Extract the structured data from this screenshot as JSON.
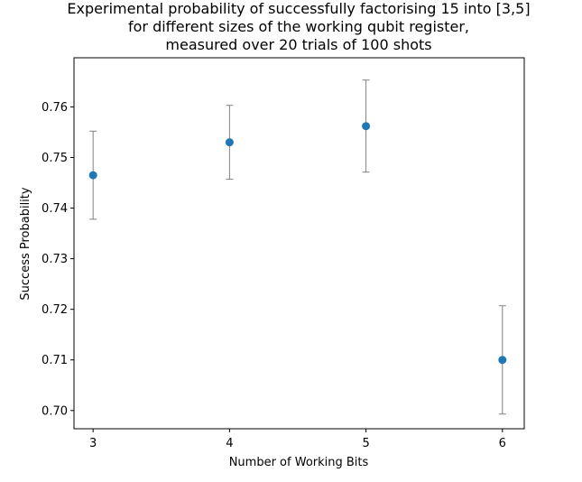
{
  "chart_data": {
    "type": "scatter",
    "title_lines": [
      "Experimental probability of successfully factorising 15 into [3,5]",
      "for different sizes of the working qubit register,",
      "measured over 20 trials of 100 shots"
    ],
    "xlabel": "Number of Working Bits",
    "ylabel": "Success Probability",
    "x": [
      3,
      4,
      5,
      6
    ],
    "y": [
      0.7465,
      0.753,
      0.7562,
      0.71
    ],
    "yerr": [
      0.0087,
      0.0073,
      0.0091,
      0.0107
    ],
    "x_ticks": [
      3,
      4,
      5,
      6
    ],
    "x_tick_labels": [
      "3",
      "4",
      "5",
      "6"
    ],
    "y_ticks": [
      0.7,
      0.71,
      0.72,
      0.73,
      0.74,
      0.75,
      0.76
    ],
    "y_tick_labels": [
      "0.70",
      "0.71",
      "0.72",
      "0.73",
      "0.74",
      "0.75",
      "0.76"
    ],
    "xlim": [
      2.86,
      6.16
    ],
    "ylim": [
      0.6964,
      0.7697
    ],
    "grid": false,
    "legend": "none",
    "colors": {
      "marker": "#1f77b4",
      "errorbar": "#808080",
      "axes": "#000000"
    }
  }
}
